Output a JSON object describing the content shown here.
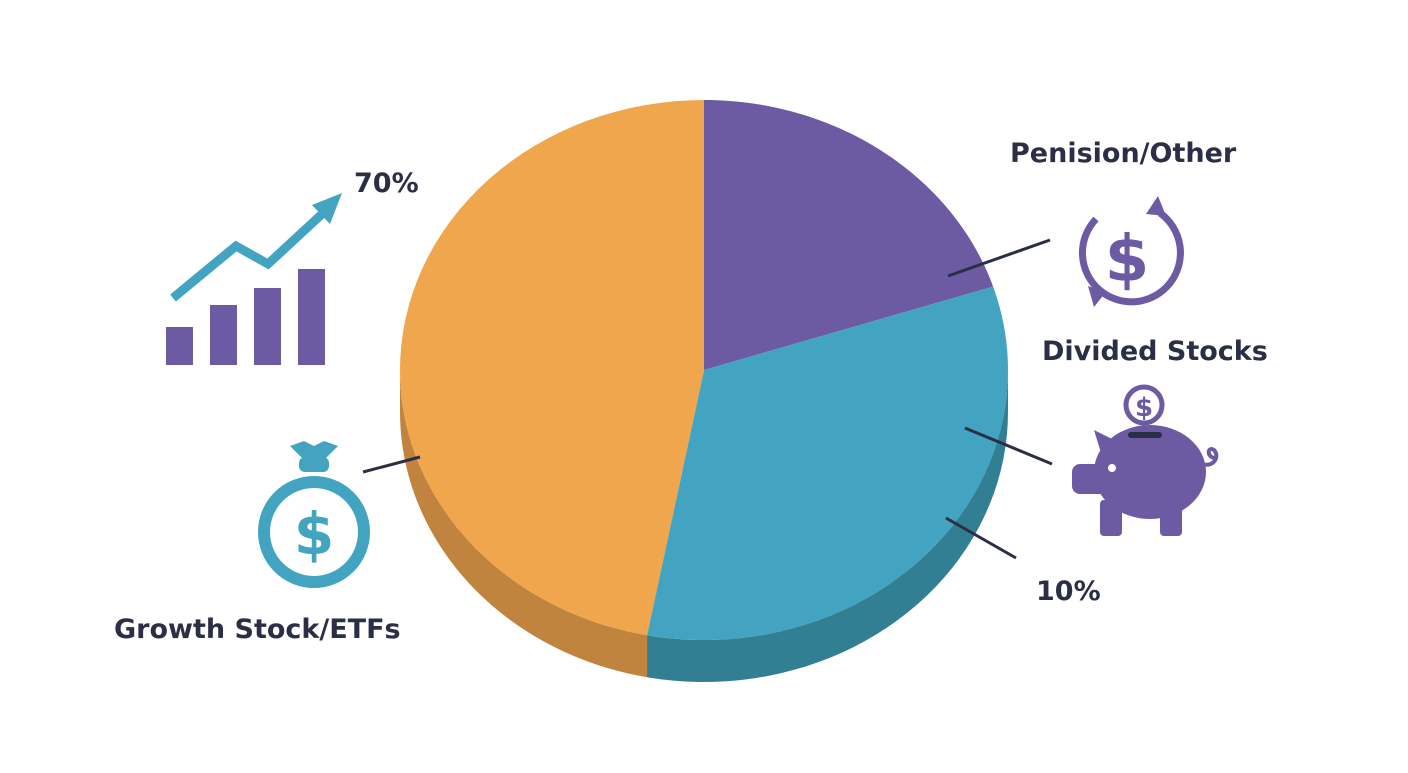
{
  "chart_data": {
    "type": "pie",
    "style": "3d",
    "slices": [
      {
        "label": "Penision/Other",
        "value": 20,
        "color": "#6c5aa3",
        "side_color": "#4e4180"
      },
      {
        "label": "Divided Stocks",
        "value": 33,
        "color": "#43a4c1",
        "side_color": "#327f93"
      },
      {
        "label": "Growth Stock/ETFs",
        "value": 47,
        "color": "#f0a64c",
        "side_color": "#c0843e"
      }
    ],
    "annotations": [
      "70%",
      "10%"
    ]
  },
  "icons": {
    "growth": "bar-chart-trend-icon",
    "money_bag": "money-bag-icon",
    "recurring_dollar": "recurring-dollar-icon",
    "piggy_bank": "piggy-bank-icon"
  },
  "colors": {
    "text": "#2a2f45",
    "purple": "#6c5aa3",
    "teal": "#43a4c1",
    "orange": "#f0a64c",
    "leader": "#2a2f45"
  }
}
